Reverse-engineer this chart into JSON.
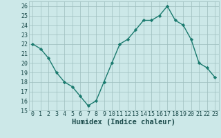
{
  "x": [
    0,
    1,
    2,
    3,
    4,
    5,
    6,
    7,
    8,
    9,
    10,
    11,
    12,
    13,
    14,
    15,
    16,
    17,
    18,
    19,
    20,
    21,
    22,
    23
  ],
  "y": [
    22,
    21.5,
    20.5,
    19,
    18,
    17.5,
    16.5,
    15.5,
    16,
    18,
    20,
    22,
    22.5,
    23.5,
    24.5,
    24.5,
    25,
    26,
    24.5,
    24,
    22.5,
    20,
    19.5,
    18.5
  ],
  "line_color": "#1a7a6e",
  "marker": "D",
  "marker_size": 2.2,
  "bg_color": "#cce8e8",
  "grid_color": "#9dbebe",
  "xlabel": "Humidex (Indice chaleur)",
  "ylim": [
    15,
    26.5
  ],
  "xlim": [
    -0.5,
    23.5
  ],
  "yticks": [
    15,
    16,
    17,
    18,
    19,
    20,
    21,
    22,
    23,
    24,
    25,
    26
  ],
  "xticks": [
    0,
    1,
    2,
    3,
    4,
    5,
    6,
    7,
    8,
    9,
    10,
    11,
    12,
    13,
    14,
    15,
    16,
    17,
    18,
    19,
    20,
    21,
    22,
    23
  ],
  "tick_fontsize": 6,
  "label_fontsize": 7.5,
  "linewidth": 1.0,
  "tick_color": "#1a4a4a",
  "label_color": "#1a4a4a"
}
